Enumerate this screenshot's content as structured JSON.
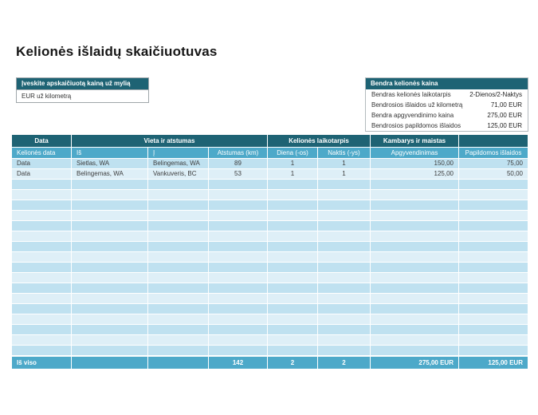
{
  "page": {
    "title": "Kelionės išlaidų skaičiuotuvas"
  },
  "colors": {
    "dark_teal": "#1e6374",
    "medium_blue": "#4da9c9",
    "stripe_dark": "#bfe1f0",
    "stripe_light": "#deeff7"
  },
  "rate_box": {
    "header": "Įveskite apskaičiuotą kainą už mylią",
    "input_label": "EUR už kilometrą"
  },
  "summary_box": {
    "header": "Bendra kelionės kaina",
    "rows": [
      {
        "label": "Bendras kelionės laikotarpis",
        "value": "2-Dienos/2-Naktys"
      },
      {
        "label": "Bendrosios išlaidos už kilometrą",
        "value": "71,00 EUR"
      },
      {
        "label": "Bendra apgyvendinimo kaina",
        "value": "275,00 EUR"
      },
      {
        "label": "Bendrosios papildomos išlaidos",
        "value": "125,00 EUR"
      }
    ]
  },
  "expense_table": {
    "group_headers": [
      {
        "label": "Data",
        "span": 1
      },
      {
        "label": "Vieta ir atstumas",
        "span": 3
      },
      {
        "label": "Kelionės laikotarpis",
        "span": 2
      },
      {
        "label": "Kambarys ir maistas",
        "span": 1
      },
      {
        "label": "",
        "span": 1
      }
    ],
    "columns": [
      {
        "label": "Kelionės data",
        "header_align": "left",
        "cell_align": "left"
      },
      {
        "label": "Iš",
        "header_align": "left",
        "cell_align": "left"
      },
      {
        "label": "Į",
        "header_align": "left",
        "cell_align": "left"
      },
      {
        "label": "Atstumas (km)",
        "header_align": "center",
        "cell_align": "center"
      },
      {
        "label": "Diena (-os)",
        "header_align": "center",
        "cell_align": "center"
      },
      {
        "label": "Naktis (-ys)",
        "header_align": "center",
        "cell_align": "center"
      },
      {
        "label": "Apgyvendinimas",
        "header_align": "center",
        "cell_align": "right"
      },
      {
        "label": "Papildomos išlaidos",
        "header_align": "center",
        "cell_align": "right"
      }
    ],
    "rows": [
      [
        "Data",
        "Sietlas, WA",
        "Belingemas, WA",
        "89",
        "1",
        "1",
        "150,00",
        "75,00"
      ],
      [
        "Data",
        "Belingemas, WA",
        "Vankuveris, BC",
        "53",
        "1",
        "1",
        "125,00",
        "50,00"
      ]
    ],
    "empty_row_count": 17,
    "total_row": {
      "label": "Iš viso",
      "values": [
        "",
        "",
        "142",
        "2",
        "2",
        "275,00 EUR",
        "125,00 EUR"
      ]
    }
  }
}
